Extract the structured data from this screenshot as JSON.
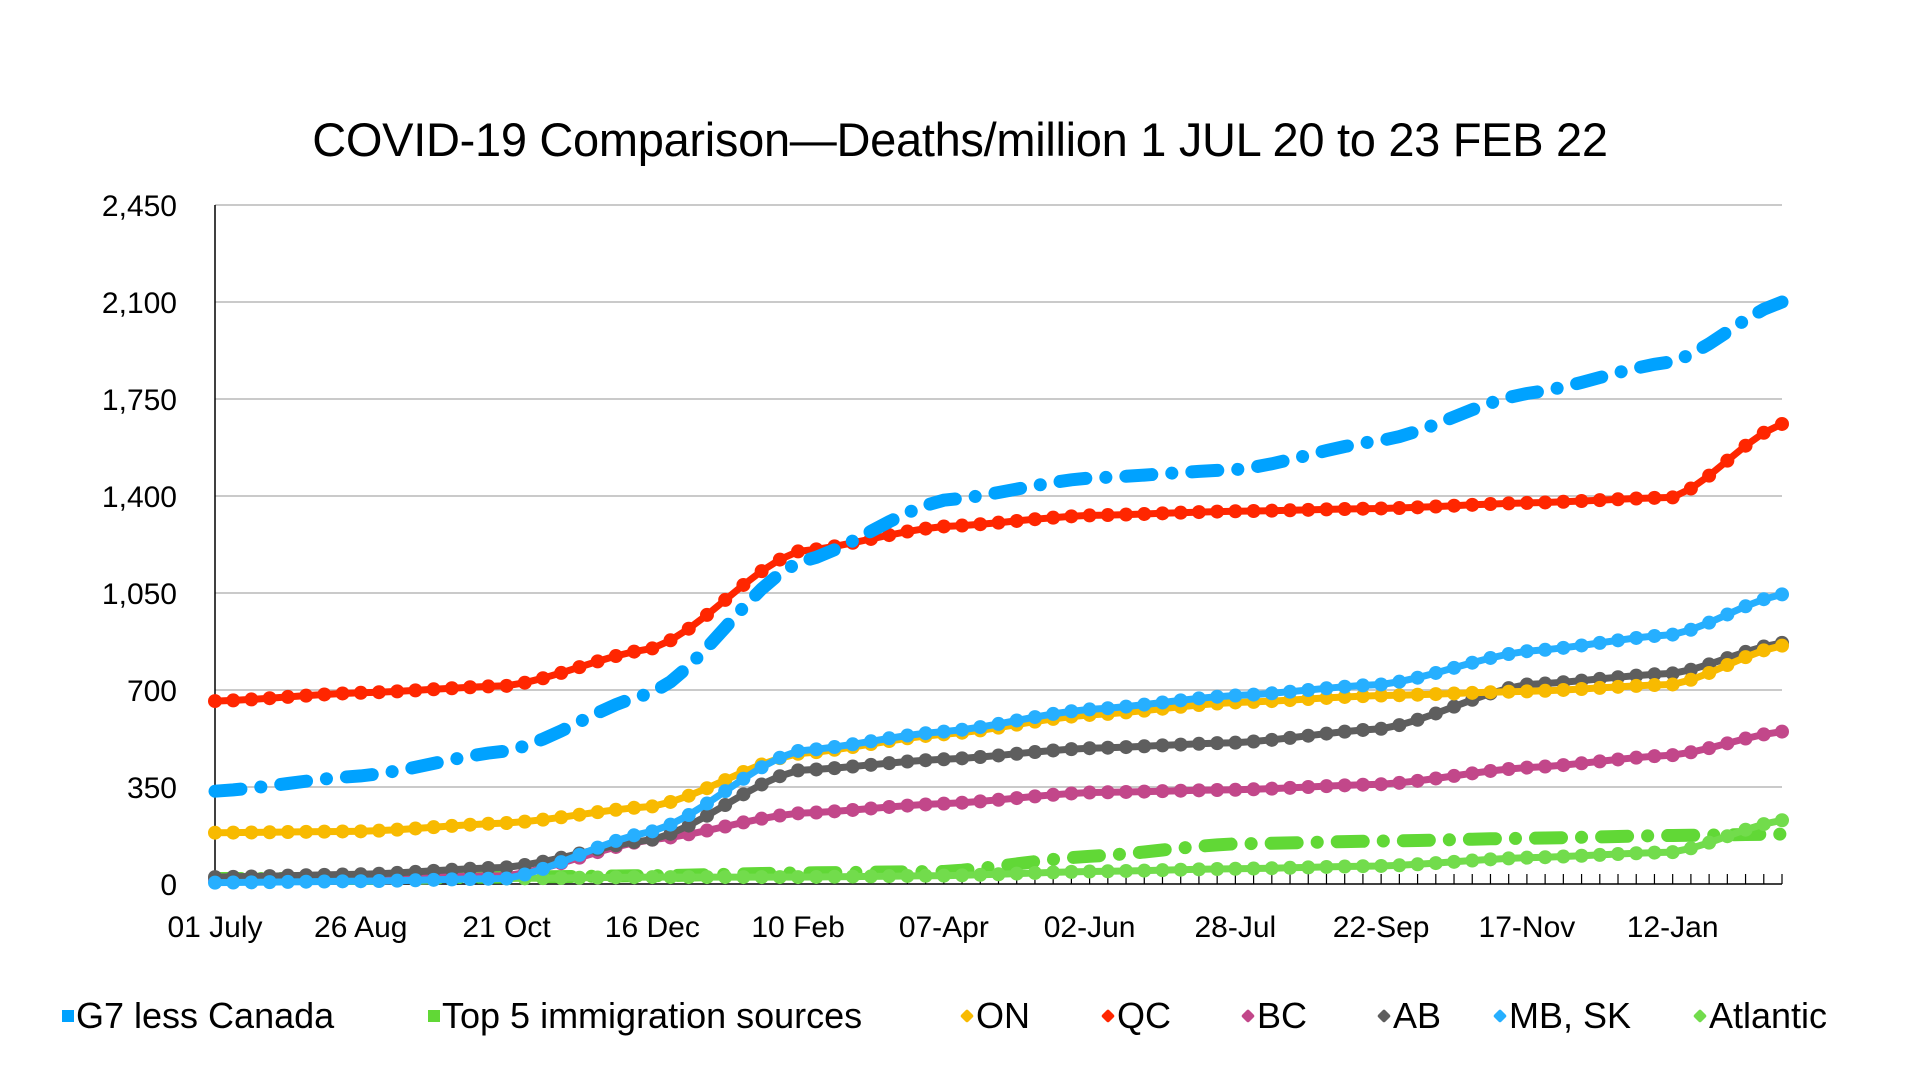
{
  "chart_data": {
    "type": "line",
    "title": "COVID-19 Comparison—Deaths/million 1 JUL 20 to 23 FEB 22",
    "xlabel": "",
    "ylabel": "",
    "ylim": [
      0,
      2450
    ],
    "yticks": [
      0,
      350,
      700,
      1050,
      1400,
      1750,
      2100,
      2450
    ],
    "ytick_labels": [
      "0",
      "350",
      "700",
      "1,050",
      "1,400",
      "1,750",
      "2,100",
      "2,450"
    ],
    "x_weeks_total": 86,
    "x_tick_weeks": [
      0,
      8,
      16,
      24,
      32,
      40,
      48,
      56,
      64,
      72,
      80
    ],
    "x_tick_labels": [
      "01 July",
      "26 Aug",
      "21 Oct",
      "16 Dec",
      "10 Feb",
      "07-Apr",
      "02-Jun",
      "28-Jul",
      "22-Sep",
      "17-Nov",
      "12-Jan"
    ],
    "key_weeks": [
      0,
      8,
      16,
      24,
      32,
      40,
      48,
      56,
      64,
      72,
      80,
      86
    ],
    "grid": "horizontal",
    "legend_position": "bottom",
    "series": [
      {
        "name": "G7 less Canada",
        "color": "#00A2FF",
        "style": "dashdot",
        "values": [
          335,
          390,
          480,
          690,
          1160,
          1385,
          1465,
          1495,
          1600,
          1770,
          1885,
          2100
        ]
      },
      {
        "name": "Top 5 immigration sources",
        "color": "#61D836",
        "style": "dashdot",
        "values": [
          20,
          20,
          25,
          30,
          40,
          45,
          100,
          145,
          155,
          165,
          175,
          180
        ]
      },
      {
        "name": "ON",
        "color": "#F8BA00",
        "style": "marker",
        "values": [
          185,
          190,
          220,
          280,
          470,
          540,
          610,
          655,
          680,
          695,
          720,
          860
        ]
      },
      {
        "name": "QC",
        "color": "#FF2600",
        "style": "marker",
        "values": [
          660,
          690,
          715,
          850,
          1200,
          1290,
          1330,
          1345,
          1355,
          1375,
          1395,
          1660
        ]
      },
      {
        "name": "BC",
        "color": "#C2478A",
        "style": "marker",
        "values": [
          15,
          20,
          30,
          160,
          255,
          290,
          330,
          340,
          360,
          420,
          465,
          550
        ]
      },
      {
        "name": "AB",
        "color": "#5E5E5E",
        "style": "marker",
        "values": [
          25,
          35,
          60,
          160,
          410,
          450,
          490,
          510,
          560,
          720,
          760,
          870
        ]
      },
      {
        "name": "MB, SK",
        "color": "#26AFFF",
        "style": "marker",
        "values": [
          5,
          10,
          20,
          190,
          480,
          550,
          630,
          680,
          720,
          840,
          900,
          1045
        ]
      },
      {
        "name": "Atlantic",
        "color": "#72DC4C",
        "style": "marker",
        "values": [
          20,
          20,
          20,
          25,
          25,
          30,
          45,
          55,
          65,
          95,
          115,
          230
        ]
      }
    ]
  }
}
